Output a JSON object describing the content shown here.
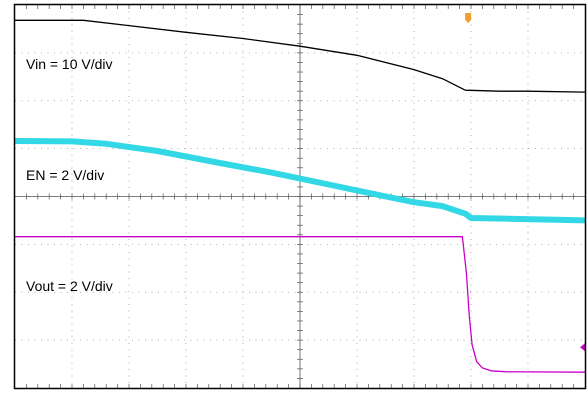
{
  "chart_data": {
    "type": "line",
    "grid": true,
    "xlim": [
      0,
      10
    ],
    "ylim": [
      0,
      8
    ],
    "colors": {
      "background": "#ffffff",
      "border": "#000000",
      "grid": "#9a9a9a",
      "trigger_marker": "#f0a030",
      "level_marker": "#cc00cc"
    },
    "series": [
      {
        "name": "Vin = 10 V/div",
        "color": "#000000",
        "width": 1.3,
        "x": [
          0,
          1.2,
          2.0,
          3.0,
          4.0,
          5.0,
          6.0,
          7.0,
          7.5,
          7.9,
          8.5,
          9.0,
          10.0
        ],
        "y": [
          7.68,
          7.68,
          7.57,
          7.43,
          7.3,
          7.14,
          6.95,
          6.65,
          6.46,
          6.22,
          6.2,
          6.2,
          6.18
        ]
      },
      {
        "name": "EN = 2 V/div",
        "color": "#33d8e6",
        "width": 6,
        "x": [
          0,
          1.0,
          1.6,
          2.5,
          3.5,
          4.5,
          5.5,
          6.3,
          7.0,
          7.5,
          7.9,
          8.0,
          10.0
        ],
        "y": [
          5.16,
          5.15,
          5.1,
          4.95,
          4.72,
          4.5,
          4.25,
          4.05,
          3.88,
          3.8,
          3.64,
          3.55,
          3.5
        ]
      },
      {
        "name": "Vout = 2 V/div",
        "color": "#cc00cc",
        "width": 1.3,
        "x": [
          0,
          7.85,
          7.92,
          7.97,
          8.02,
          8.1,
          8.2,
          8.35,
          8.6,
          10.0
        ],
        "y": [
          3.16,
          3.16,
          2.4,
          1.5,
          0.9,
          0.55,
          0.42,
          0.36,
          0.34,
          0.33
        ]
      }
    ],
    "annotations": [
      "Vin = 10 V/div",
      "EN = 2 V/div",
      "Vout = 2 V/div"
    ],
    "trigger_position_x": 7.95,
    "vout_level_marker_y": 0.85
  }
}
